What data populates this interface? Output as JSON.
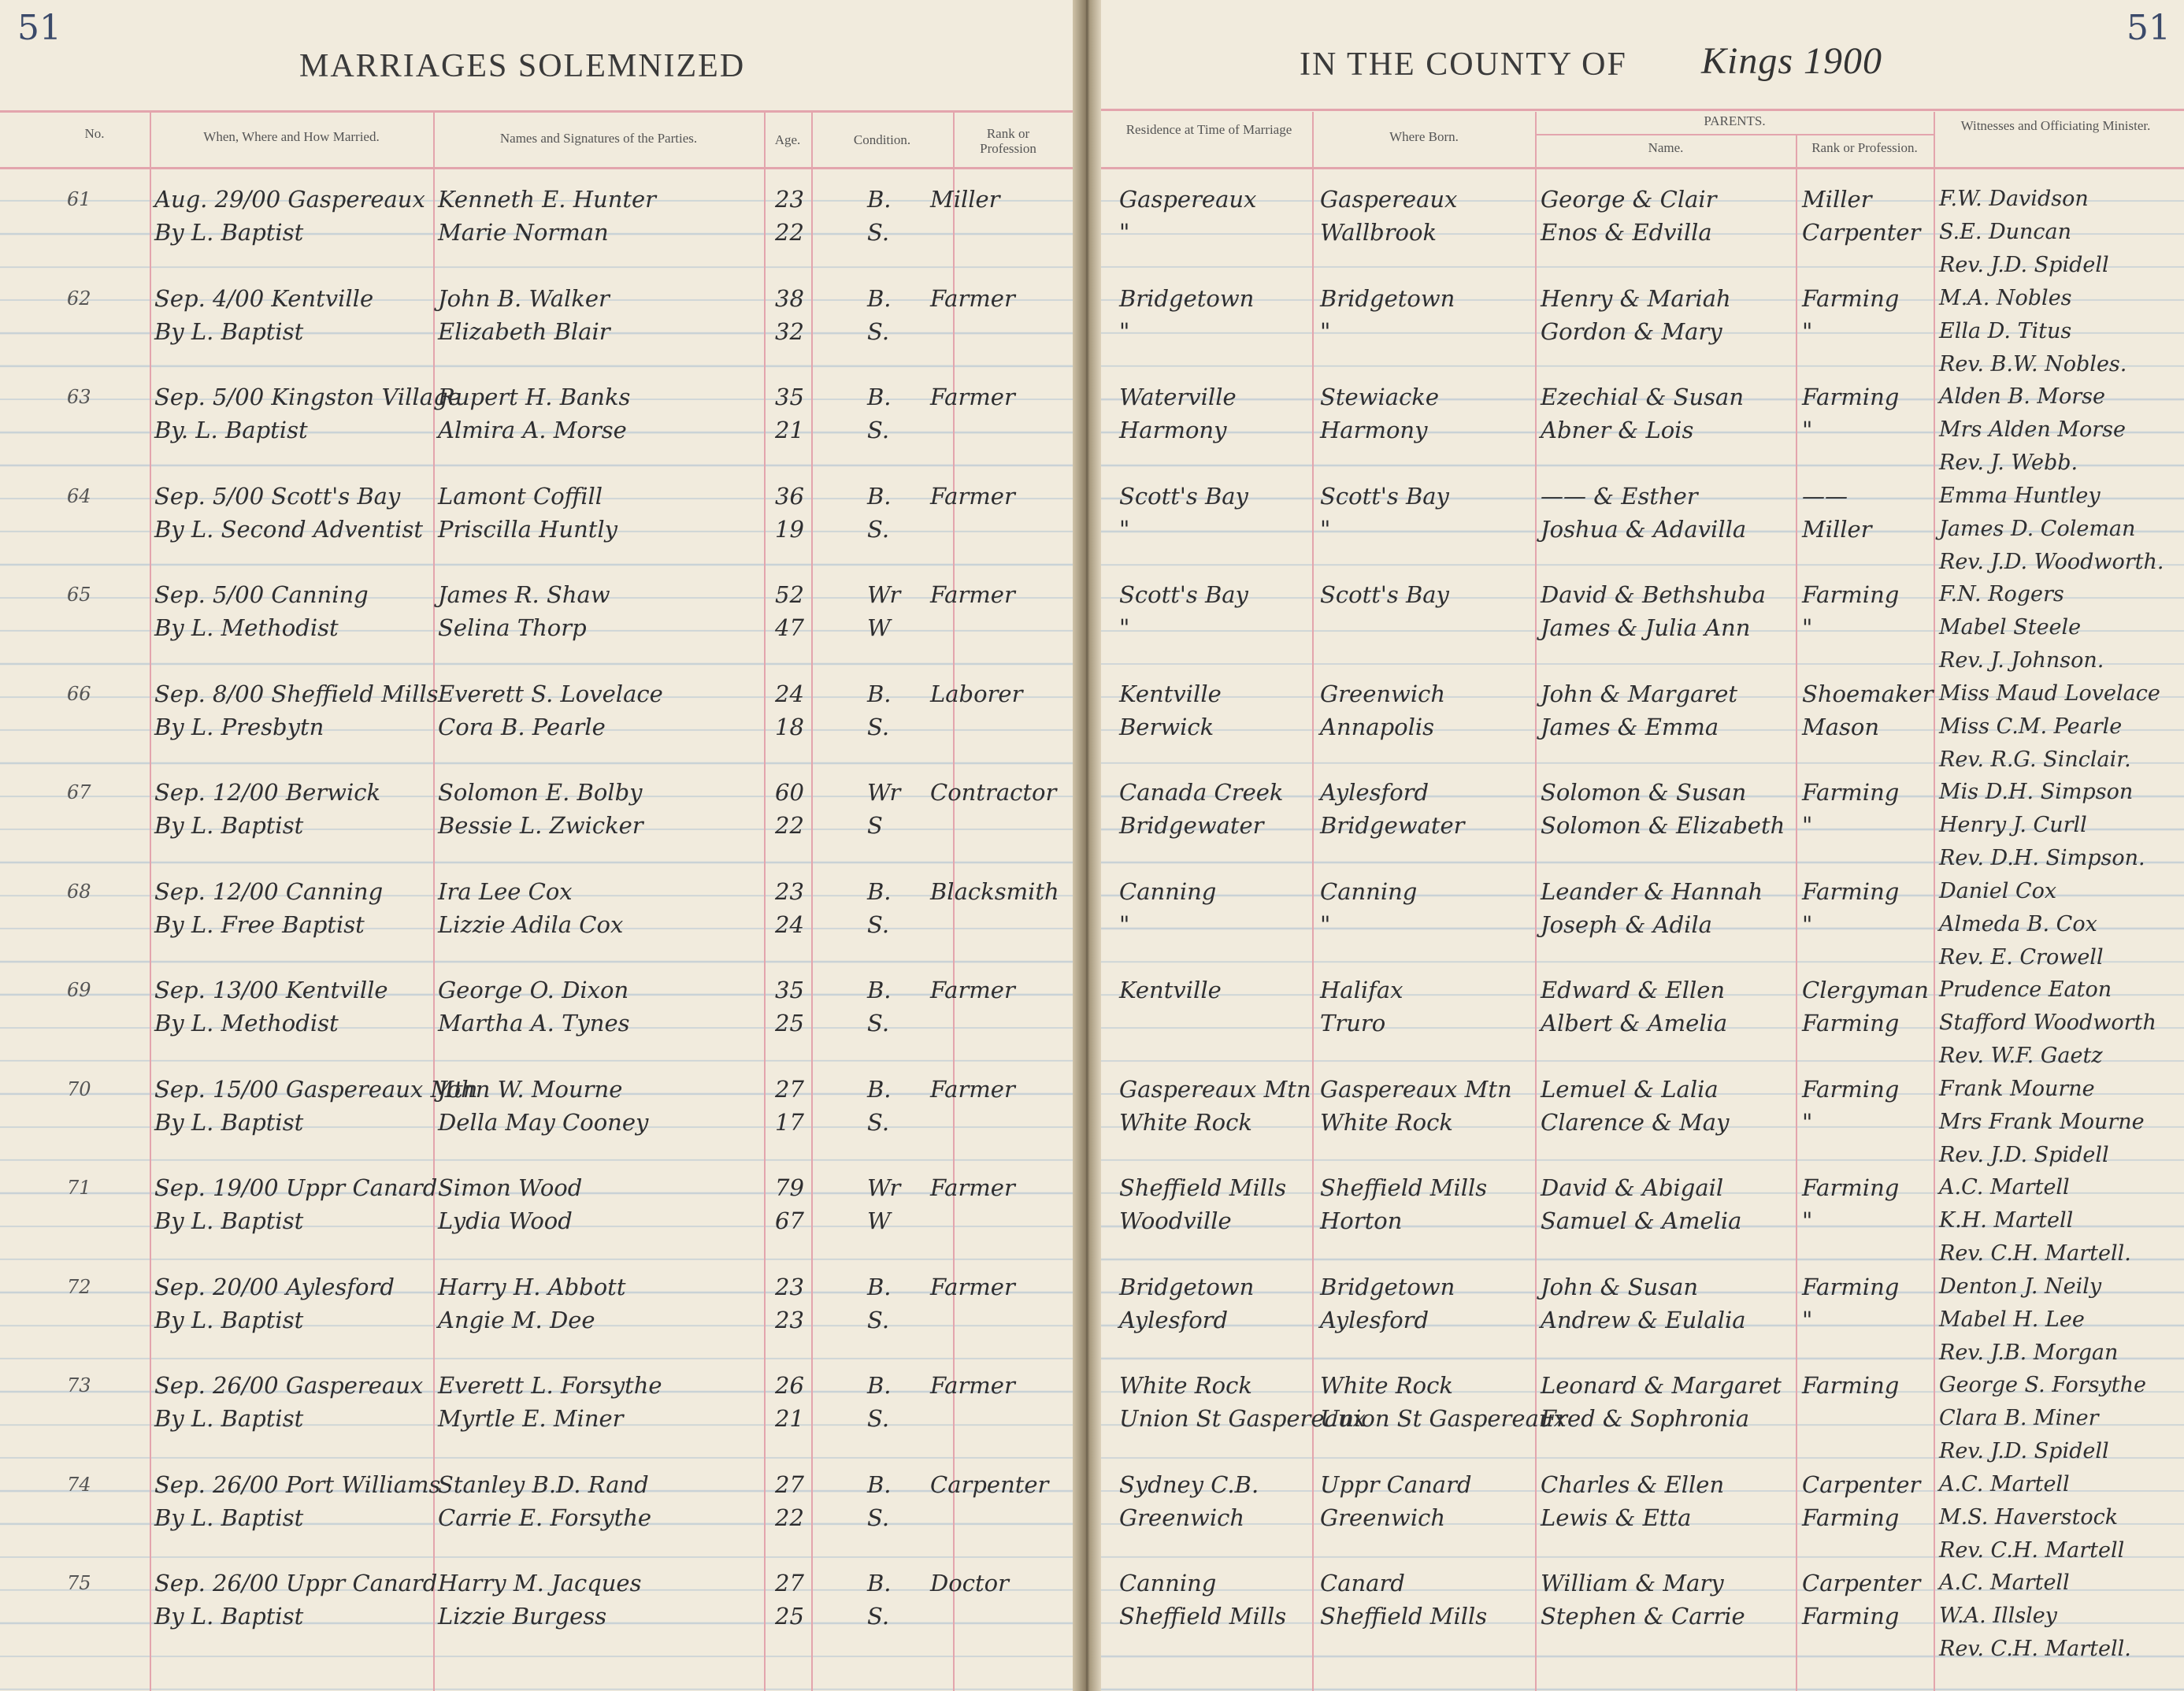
{
  "left_page": {
    "page_number": "51",
    "title": "MARRIAGES SOLEMNIZED",
    "headers": {
      "no": "No.",
      "when": "When, Where and How Married.",
      "names": "Names and Signatures of the Parties.",
      "age": "Age.",
      "condition": "Condition.",
      "rank": "Rank or Profession"
    }
  },
  "right_page": {
    "page_number": "51",
    "title": "IN THE COUNTY OF",
    "county_handwritten": "Kings 1900",
    "headers": {
      "residence": "Residence at Time of Marriage",
      "born": "Where Born.",
      "parents": "PARENTS.",
      "parent_name": "Name.",
      "parent_rank": "Rank or Profession.",
      "witnesses": "Witnesses and Officiating Minister."
    }
  },
  "entries": [
    {
      "no": "61",
      "when": [
        "Aug. 29/00 Gaspereaux",
        "By L. Baptist"
      ],
      "names": [
        "Kenneth E. Hunter",
        "Marie Norman"
      ],
      "age": [
        "23",
        "22"
      ],
      "condition": [
        "B.",
        "S."
      ],
      "rank": [
        "Miller",
        ""
      ],
      "residence": [
        "Gaspereaux",
        "\""
      ],
      "born": [
        "Gaspereaux",
        "Wallbrook"
      ],
      "parents": [
        "George & Clair",
        "Enos & Edvilla"
      ],
      "parent_rank": [
        "Miller",
        "Carpenter"
      ],
      "witnesses": [
        "F.W. Davidson",
        "S.E. Duncan",
        "Rev. J.D. Spidell"
      ]
    },
    {
      "no": "62",
      "when": [
        "Sep. 4/00 Kentville",
        "By L. Baptist"
      ],
      "names": [
        "John B. Walker",
        "Elizabeth Blair"
      ],
      "age": [
        "38",
        "32"
      ],
      "condition": [
        "B.",
        "S."
      ],
      "rank": [
        "Farmer",
        ""
      ],
      "residence": [
        "Bridgetown",
        "\""
      ],
      "born": [
        "Bridgetown",
        "\""
      ],
      "parents": [
        "Henry & Mariah",
        "Gordon & Mary"
      ],
      "parent_rank": [
        "Farming",
        "\""
      ],
      "witnesses": [
        "M.A. Nobles",
        "Ella D. Titus",
        "Rev. B.W. Nobles."
      ]
    },
    {
      "no": "63",
      "when": [
        "Sep. 5/00 Kingston Village",
        "By. L. Baptist"
      ],
      "names": [
        "Rupert H. Banks",
        "Almira A. Morse"
      ],
      "age": [
        "35",
        "21"
      ],
      "condition": [
        "B.",
        "S."
      ],
      "rank": [
        "Farmer",
        ""
      ],
      "residence": [
        "Waterville",
        "Harmony"
      ],
      "born": [
        "Stewiacke",
        "Harmony"
      ],
      "parents": [
        "Ezechial & Susan",
        "Abner & Lois"
      ],
      "parent_rank": [
        "Farming",
        "\""
      ],
      "witnesses": [
        "Alden B. Morse",
        "Mrs Alden Morse",
        "Rev. J. Webb."
      ]
    },
    {
      "no": "64",
      "when": [
        "Sep. 5/00 Scott's Bay",
        "By L. Second Adventist"
      ],
      "names": [
        "Lamont Coffill",
        "Priscilla Huntly"
      ],
      "age": [
        "36",
        "19"
      ],
      "condition": [
        "B.",
        "S."
      ],
      "rank": [
        "Farmer",
        ""
      ],
      "residence": [
        "Scott's Bay",
        "\""
      ],
      "born": [
        "Scott's Bay",
        "\""
      ],
      "parents": [
        "—— & Esther",
        "Joshua & Adavilla"
      ],
      "parent_rank": [
        "——",
        "Miller"
      ],
      "witnesses": [
        "Emma Huntley",
        "James D. Coleman",
        "Rev. J.D. Woodworth."
      ]
    },
    {
      "no": "65",
      "when": [
        "Sep. 5/00 Canning",
        "By L. Methodist"
      ],
      "names": [
        "James R. Shaw",
        "Selina Thorp"
      ],
      "age": [
        "52",
        "47"
      ],
      "condition": [
        "Wr",
        "W"
      ],
      "rank": [
        "Farmer",
        ""
      ],
      "residence": [
        "Scott's Bay",
        "\""
      ],
      "born": [
        "Scott's Bay",
        ""
      ],
      "parents": [
        "David & Bethshuba",
        "James & Julia Ann"
      ],
      "parent_rank": [
        "Farming",
        "\""
      ],
      "witnesses": [
        "F.N. Rogers",
        "Mabel Steele",
        "Rev. J. Johnson."
      ]
    },
    {
      "no": "66",
      "when": [
        "Sep. 8/00 Sheffield Mills",
        "By L. Presbytn"
      ],
      "names": [
        "Everett S. Lovelace",
        "Cora B. Pearle"
      ],
      "age": [
        "24",
        "18"
      ],
      "condition": [
        "B.",
        "S."
      ],
      "rank": [
        "Laborer",
        ""
      ],
      "residence": [
        "Kentville",
        "Berwick"
      ],
      "born": [
        "Greenwich",
        "Annapolis"
      ],
      "parents": [
        "John & Margaret",
        "James & Emma"
      ],
      "parent_rank": [
        "Shoemaker",
        "Mason"
      ],
      "witnesses": [
        "Miss Maud Lovelace",
        "Miss C.M. Pearle",
        "Rev. R.G. Sinclair."
      ]
    },
    {
      "no": "67",
      "when": [
        "Sep. 12/00 Berwick",
        "By L. Baptist"
      ],
      "names": [
        "Solomon E. Bolby",
        "Bessie L. Zwicker"
      ],
      "age": [
        "60",
        "22"
      ],
      "condition": [
        "Wr",
        "S"
      ],
      "rank": [
        "Contractor",
        ""
      ],
      "residence": [
        "Canada Creek",
        "Bridgewater"
      ],
      "born": [
        "Aylesford",
        "Bridgewater"
      ],
      "parents": [
        "Solomon & Susan",
        "Solomon & Elizabeth"
      ],
      "parent_rank": [
        "Farming",
        "\""
      ],
      "witnesses": [
        "Mis D.H. Simpson",
        "Henry J. Curll",
        "Rev. D.H. Simpson."
      ]
    },
    {
      "no": "68",
      "when": [
        "Sep. 12/00 Canning",
        "By L. Free Baptist"
      ],
      "names": [
        "Ira Lee Cox",
        "Lizzie Adila Cox"
      ],
      "age": [
        "23",
        "24"
      ],
      "condition": [
        "B.",
        "S."
      ],
      "rank": [
        "Blacksmith",
        ""
      ],
      "residence": [
        "Canning",
        "\""
      ],
      "born": [
        "Canning",
        "\""
      ],
      "parents": [
        "Leander & Hannah",
        "Joseph & Adila"
      ],
      "parent_rank": [
        "Farming",
        "\""
      ],
      "witnesses": [
        "Daniel Cox",
        "Almeda B. Cox",
        "Rev. E. Crowell"
      ]
    },
    {
      "no": "69",
      "when": [
        "Sep. 13/00 Kentville",
        "By L. Methodist"
      ],
      "names": [
        "George O. Dixon",
        "Martha A. Tynes"
      ],
      "age": [
        "35",
        "25"
      ],
      "condition": [
        "B.",
        "S."
      ],
      "rank": [
        "Farmer",
        ""
      ],
      "residence": [
        "Kentville",
        ""
      ],
      "born": [
        "Halifax",
        "Truro"
      ],
      "parents": [
        "Edward & Ellen",
        "Albert & Amelia"
      ],
      "parent_rank": [
        "Clergyman",
        "Farming"
      ],
      "witnesses": [
        "Prudence Eaton",
        "Stafford Woodworth",
        "Rev. W.F. Gaetz"
      ]
    },
    {
      "no": "70",
      "when": [
        "Sep. 15/00 Gaspereaux Mtn",
        "By L. Baptist"
      ],
      "names": [
        "John W. Mourne",
        "Della May Cooney"
      ],
      "age": [
        "27",
        "17"
      ],
      "condition": [
        "B.",
        "S."
      ],
      "rank": [
        "Farmer",
        ""
      ],
      "residence": [
        "Gaspereaux Mtn",
        "White Rock"
      ],
      "born": [
        "Gaspereaux Mtn",
        "White Rock"
      ],
      "parents": [
        "Lemuel & Lalia",
        "Clarence & May"
      ],
      "parent_rank": [
        "Farming",
        "\""
      ],
      "witnesses": [
        "Frank Mourne",
        "Mrs Frank Mourne",
        "Rev. J.D. Spidell"
      ]
    },
    {
      "no": "71",
      "when": [
        "Sep. 19/00 Uppr Canard",
        "By L. Baptist"
      ],
      "names": [
        "Simon Wood",
        "Lydia Wood"
      ],
      "age": [
        "79",
        "67"
      ],
      "condition": [
        "Wr",
        "W"
      ],
      "rank": [
        "Farmer",
        ""
      ],
      "residence": [
        "Sheffield Mills",
        "Woodville"
      ],
      "born": [
        "Sheffield Mills",
        "Horton"
      ],
      "parents": [
        "David & Abigail",
        "Samuel & Amelia"
      ],
      "parent_rank": [
        "Farming",
        "\""
      ],
      "witnesses": [
        "A.C. Martell",
        "K.H. Martell",
        "Rev. C.H. Martell."
      ]
    },
    {
      "no": "72",
      "when": [
        "Sep. 20/00 Aylesford",
        "By L. Baptist"
      ],
      "names": [
        "Harry H. Abbott",
        "Angie M. Dee"
      ],
      "age": [
        "23",
        "23"
      ],
      "condition": [
        "B.",
        "S."
      ],
      "rank": [
        "Farmer",
        ""
      ],
      "residence": [
        "Bridgetown",
        "Aylesford"
      ],
      "born": [
        "Bridgetown",
        "Aylesford"
      ],
      "parents": [
        "John & Susan",
        "Andrew & Eulalia"
      ],
      "parent_rank": [
        "Farming",
        "\""
      ],
      "witnesses": [
        "Denton J. Neily",
        "Mabel H. Lee",
        "Rev. J.B. Morgan"
      ]
    },
    {
      "no": "73",
      "when": [
        "Sep. 26/00 Gaspereaux",
        "By L. Baptist"
      ],
      "names": [
        "Everett L. Forsythe",
        "Myrtle E. Miner"
      ],
      "age": [
        "26",
        "21"
      ],
      "condition": [
        "B.",
        "S."
      ],
      "rank": [
        "Farmer",
        ""
      ],
      "residence": [
        "White Rock",
        "Union St Gaspereaux"
      ],
      "born": [
        "White Rock",
        "Union St Gaspereaux"
      ],
      "parents": [
        "Leonard & Margaret",
        "Fred & Sophronia"
      ],
      "parent_rank": [
        "Farming",
        ""
      ],
      "witnesses": [
        "George S. Forsythe",
        "Clara B. Miner",
        "Rev. J.D. Spidell"
      ]
    },
    {
      "no": "74",
      "when": [
        "Sep. 26/00 Port Williams",
        "By L. Baptist"
      ],
      "names": [
        "Stanley B.D. Rand",
        "Carrie E. Forsythe"
      ],
      "age": [
        "27",
        "22"
      ],
      "condition": [
        "B.",
        "S."
      ],
      "rank": [
        "Carpenter",
        ""
      ],
      "residence": [
        "Sydney C.B.",
        "Greenwich"
      ],
      "born": [
        "Uppr Canard",
        "Greenwich"
      ],
      "parents": [
        "Charles & Ellen",
        "Lewis & Etta"
      ],
      "parent_rank": [
        "Carpenter",
        "Farming"
      ],
      "witnesses": [
        "A.C. Martell",
        "M.S. Haverstock",
        "Rev. C.H. Martell"
      ]
    },
    {
      "no": "75",
      "when": [
        "Sep. 26/00 Uppr Canard",
        "By L. Baptist"
      ],
      "names": [
        "Harry M. Jacques",
        "Lizzie Burgess"
      ],
      "age": [
        "27",
        "25"
      ],
      "condition": [
        "B.",
        "S."
      ],
      "rank": [
        "Doctor",
        ""
      ],
      "residence": [
        "Canning",
        "Sheffield Mills"
      ],
      "born": [
        "Canard",
        "Sheffield Mills"
      ],
      "parents": [
        "William & Mary",
        "Stephen & Carrie"
      ],
      "parent_rank": [
        "Carpenter",
        "Farming"
      ],
      "witnesses": [
        "A.C. Martell",
        "W.A. Illsley",
        "Rev. C.H. Martell."
      ]
    }
  ]
}
